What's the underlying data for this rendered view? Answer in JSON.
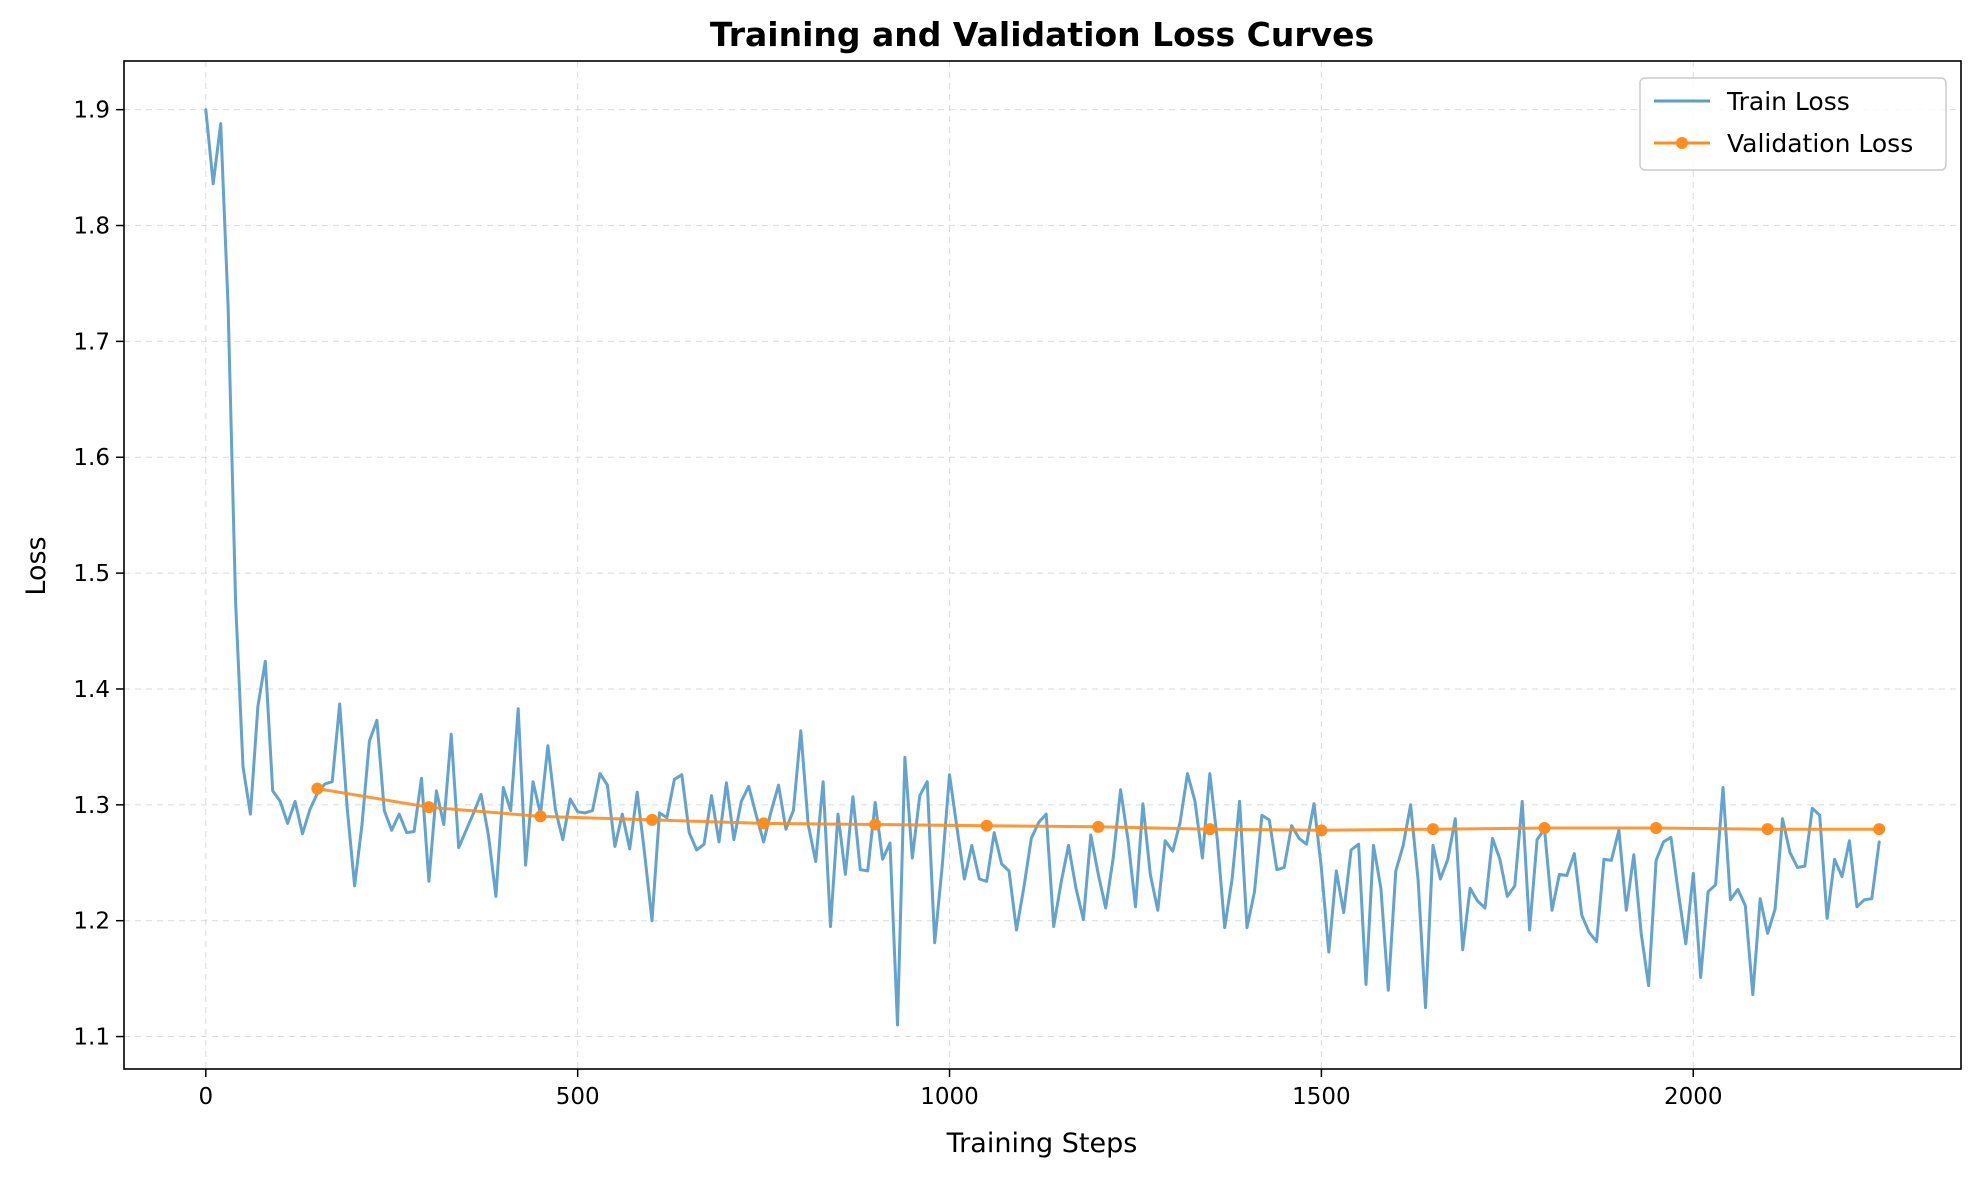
{
  "chart_data": {
    "type": "line",
    "title": "Training and Validation Loss Curves",
    "xlabel": "Training Steps",
    "ylabel": "Loss",
    "xlim": [
      -110,
      2360
    ],
    "ylim": [
      1.072,
      1.942
    ],
    "xticks": [
      0,
      500,
      1000,
      1500,
      2000
    ],
    "yticks": [
      1.1,
      1.2,
      1.3,
      1.4,
      1.5,
      1.6,
      1.7,
      1.8,
      1.9
    ],
    "grid": true,
    "legend_position": "top-right",
    "colors": {
      "train": "#5b9ec9",
      "validation": "#ff8c1e"
    },
    "series": [
      {
        "name": "Train Loss",
        "marker": "none",
        "x": [
          0,
          10,
          20,
          30,
          40,
          50,
          60,
          70,
          80,
          90,
          100,
          110,
          120,
          130,
          140,
          150,
          160,
          170,
          180,
          190,
          200,
          210,
          220,
          230,
          240,
          250,
          260,
          270,
          280,
          290,
          300,
          310,
          320,
          330,
          340,
          350,
          360,
          370,
          380,
          390,
          400,
          410,
          420,
          430,
          440,
          450,
          460,
          470,
          480,
          490,
          500,
          510,
          520,
          530,
          540,
          550,
          560,
          570,
          580,
          590,
          600,
          610,
          620,
          630,
          640,
          650,
          660,
          670,
          680,
          690,
          700,
          710,
          720,
          730,
          740,
          750,
          760,
          770,
          780,
          790,
          800,
          810,
          820,
          830,
          840,
          850,
          860,
          870,
          880,
          890,
          900,
          910,
          920,
          930,
          940,
          950,
          960,
          970,
          980,
          990,
          1000,
          1010,
          1020,
          1030,
          1040,
          1050,
          1060,
          1070,
          1080,
          1090,
          1100,
          1110,
          1120,
          1130,
          1140,
          1150,
          1160,
          1170,
          1180,
          1190,
          1200,
          1210,
          1220,
          1230,
          1240,
          1250,
          1260,
          1270,
          1280,
          1290,
          1300,
          1310,
          1320,
          1330,
          1340,
          1350,
          1360,
          1370,
          1380,
          1390,
          1400,
          1410,
          1420,
          1430,
          1440,
          1450,
          1460,
          1470,
          1480,
          1490,
          1500,
          1510,
          1520,
          1530,
          1540,
          1550,
          1560,
          1570,
          1580,
          1590,
          1600,
          1610,
          1620,
          1630,
          1640,
          1650,
          1660,
          1670,
          1680,
          1690,
          1700,
          1710,
          1720,
          1730,
          1740,
          1750,
          1760,
          1770,
          1780,
          1790,
          1800,
          1810,
          1820,
          1830,
          1840,
          1850,
          1860,
          1870,
          1880,
          1890,
          1900,
          1910,
          1920,
          1930,
          1940,
          1950,
          1960,
          1970,
          1980,
          1990,
          2000,
          2010,
          2020,
          2030,
          2040,
          2050,
          2060,
          2070,
          2080,
          2090,
          2100,
          2110,
          2120,
          2130,
          2140,
          2150,
          2160,
          2170,
          2180,
          2190,
          2200,
          2210,
          2220,
          2230,
          2240,
          2250
        ],
        "y": [
          1.9,
          1.836,
          1.888,
          1.73,
          1.475,
          1.333,
          1.292,
          1.385,
          1.424,
          1.312,
          1.303,
          1.284,
          1.303,
          1.275,
          1.296,
          1.31,
          1.318,
          1.32,
          1.387,
          1.298,
          1.23,
          1.283,
          1.355,
          1.373,
          1.295,
          1.278,
          1.292,
          1.276,
          1.277,
          1.323,
          1.234,
          1.312,
          1.283,
          1.361,
          1.263,
          1.278,
          1.293,
          1.309,
          1.274,
          1.221,
          1.315,
          1.295,
          1.383,
          1.248,
          1.32,
          1.292,
          1.351,
          1.296,
          1.27,
          1.305,
          1.294,
          1.293,
          1.295,
          1.327,
          1.317,
          1.264,
          1.292,
          1.262,
          1.311,
          1.258,
          1.2,
          1.293,
          1.289,
          1.322,
          1.326,
          1.276,
          1.261,
          1.266,
          1.308,
          1.268,
          1.319,
          1.27,
          1.303,
          1.316,
          1.291,
          1.268,
          1.294,
          1.317,
          1.279,
          1.295,
          1.364,
          1.283,
          1.251,
          1.32,
          1.195,
          1.292,
          1.24,
          1.307,
          1.244,
          1.243,
          1.302,
          1.253,
          1.267,
          1.11,
          1.341,
          1.254,
          1.308,
          1.32,
          1.181,
          1.246,
          1.326,
          1.28,
          1.236,
          1.265,
          1.236,
          1.234,
          1.276,
          1.249,
          1.243,
          1.192,
          1.229,
          1.271,
          1.285,
          1.292,
          1.195,
          1.233,
          1.265,
          1.228,
          1.201,
          1.274,
          1.24,
          1.211,
          1.254,
          1.313,
          1.27,
          1.212,
          1.301,
          1.24,
          1.209,
          1.269,
          1.26,
          1.285,
          1.327,
          1.303,
          1.254,
          1.327,
          1.27,
          1.194,
          1.236,
          1.303,
          1.194,
          1.225,
          1.291,
          1.287,
          1.244,
          1.246,
          1.282,
          1.271,
          1.266,
          1.301,
          1.245,
          1.173,
          1.243,
          1.207,
          1.261,
          1.266,
          1.145,
          1.265,
          1.228,
          1.14,
          1.243,
          1.265,
          1.3,
          1.235,
          1.125,
          1.265,
          1.236,
          1.253,
          1.288,
          1.175,
          1.228,
          1.217,
          1.211,
          1.271,
          1.253,
          1.221,
          1.23,
          1.303,
          1.192,
          1.27,
          1.279,
          1.209,
          1.24,
          1.239,
          1.258,
          1.205,
          1.19,
          1.182,
          1.253,
          1.252,
          1.278,
          1.209,
          1.257,
          1.189,
          1.144,
          1.252,
          1.268,
          1.272,
          1.224,
          1.18,
          1.241,
          1.151,
          1.225,
          1.231,
          1.315,
          1.218,
          1.227,
          1.213,
          1.136,
          1.219,
          1.189,
          1.21,
          1.288,
          1.259,
          1.246,
          1.247,
          1.297,
          1.291,
          1.202,
          1.253,
          1.238,
          1.269,
          1.212,
          1.218,
          1.219,
          1.268
        ]
      },
      {
        "name": "Validation Loss",
        "marker": "circle",
        "x": [
          150,
          300,
          450,
          600,
          750,
          900,
          1050,
          1200,
          1350,
          1500,
          1650,
          1800,
          1950,
          2100,
          2250
        ],
        "y": [
          1.314,
          1.298,
          1.29,
          1.287,
          1.284,
          1.283,
          1.282,
          1.281,
          1.279,
          1.278,
          1.279,
          1.28,
          1.28,
          1.279,
          1.279
        ]
      }
    ]
  }
}
